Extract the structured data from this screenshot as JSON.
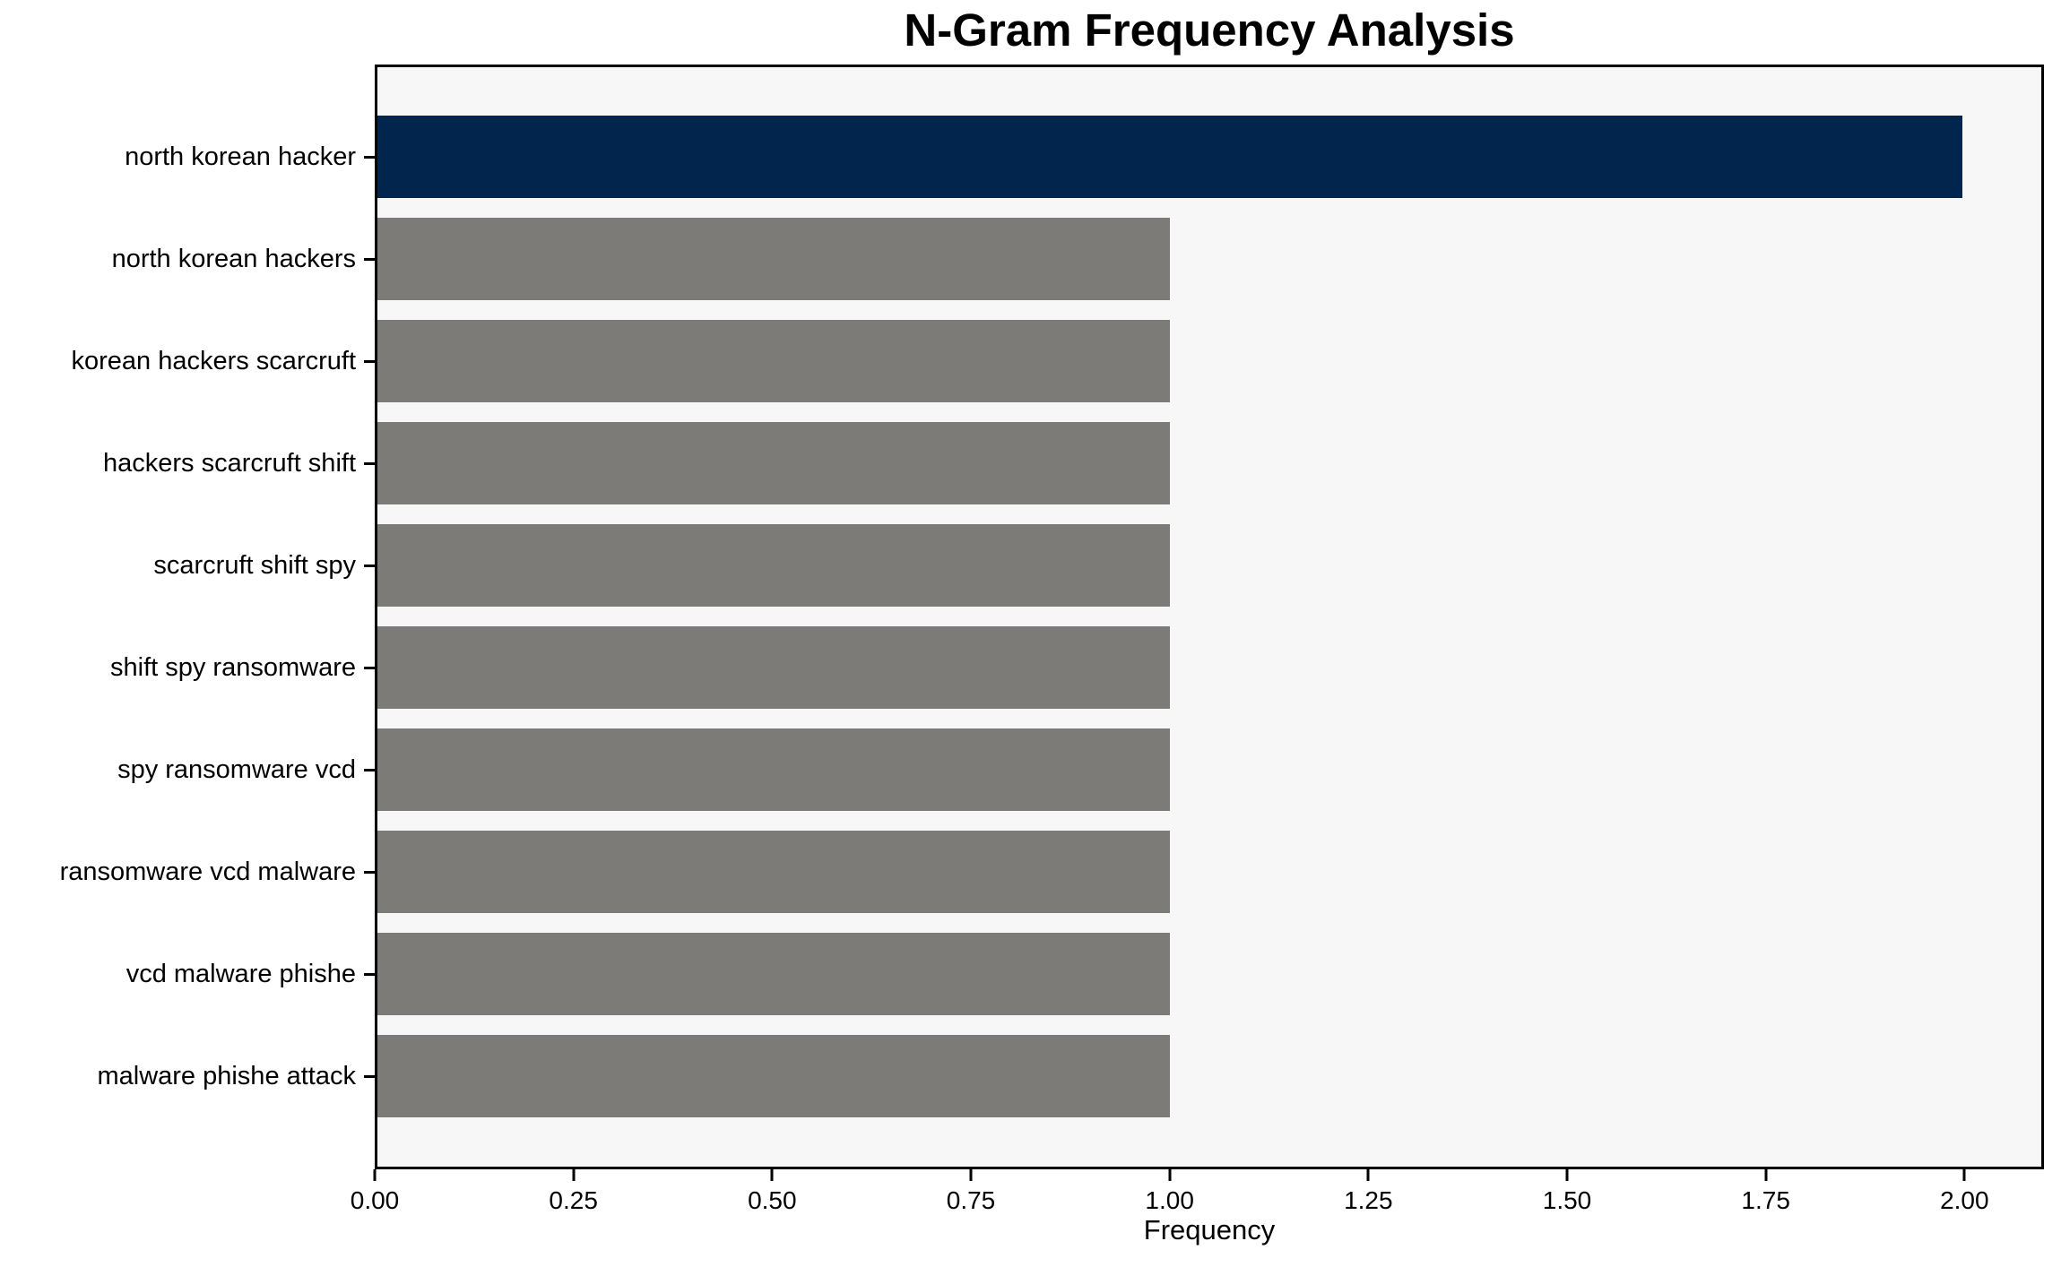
{
  "chart_data": {
    "type": "bar",
    "orientation": "horizontal",
    "title": "N-Gram Frequency Analysis",
    "xlabel": "Frequency",
    "ylabel": "",
    "categories": [
      "north korean hacker",
      "north korean hackers",
      "korean hackers scarcruft",
      "hackers scarcruft shift",
      "scarcruft shift spy",
      "shift spy ransomware",
      "spy ransomware vcd",
      "ransomware vcd malware",
      "vcd malware phishe",
      "malware phishe attack"
    ],
    "values": [
      2.0,
      1.0,
      1.0,
      1.0,
      1.0,
      1.0,
      1.0,
      1.0,
      1.0,
      1.0
    ],
    "bar_colors": [
      "#02254e",
      "#7c7b78",
      "#7c7b78",
      "#7c7b78",
      "#7c7b78",
      "#7c7b78",
      "#7c7b78",
      "#7c7b78",
      "#7c7b78",
      "#7c7b78"
    ],
    "xlim": [
      0,
      2.1
    ],
    "xticks": [
      {
        "value": 0.0,
        "label": "0.00"
      },
      {
        "value": 0.25,
        "label": "0.25"
      },
      {
        "value": 0.5,
        "label": "0.50"
      },
      {
        "value": 0.75,
        "label": "0.75"
      },
      {
        "value": 1.0,
        "label": "1.00"
      },
      {
        "value": 1.25,
        "label": "1.25"
      },
      {
        "value": 1.5,
        "label": "1.50"
      },
      {
        "value": 1.75,
        "label": "1.75"
      },
      {
        "value": 2.0,
        "label": "2.00"
      }
    ],
    "grid": false,
    "legend": null,
    "plot_background": "#f7f7f7",
    "figure_background": "#ffffff",
    "highlight_color": "#02254e",
    "default_bar_color": "#7c7b78"
  }
}
